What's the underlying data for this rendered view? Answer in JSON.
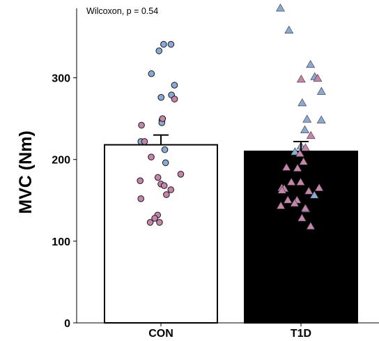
{
  "chart_data": {
    "type": "bar",
    "title": "",
    "xlabel": "",
    "ylabel": "MVC (Nm)",
    "ylim": [
      0,
      385
    ],
    "yticks": [
      0,
      100,
      200,
      300
    ],
    "categories": [
      "CON",
      "T1D"
    ],
    "bars": [
      {
        "category": "CON",
        "value": 218,
        "error_upper": 230,
        "fill": "#ffffff"
      },
      {
        "category": "T1D",
        "value": 210,
        "error_upper": 222,
        "fill": "#000000"
      }
    ],
    "annotation": "Wilcoxon, p = 0.54",
    "grid": false,
    "colors": {
      "blue": "#8aa9d4",
      "pink": "#c585ab"
    },
    "points": {
      "CON": {
        "marker": "circle",
        "blue": [
          341,
          341,
          333,
          305,
          291,
          279,
          276,
          248,
          245,
          222,
          212,
          196
        ],
        "pink": [
          274,
          250,
          242,
          222,
          203,
          182,
          178,
          174,
          170,
          168,
          163,
          157,
          152,
          132,
          128,
          123,
          123
        ]
      },
      "T1D": {
        "marker": "triangle",
        "blue": [
          385,
          358,
          316,
          301,
          283,
          269,
          249,
          248,
          236,
          216,
          209,
          156,
          139
        ],
        "pink": [
          298,
          299,
          229,
          214,
          207,
          197,
          190,
          189,
          172,
          172,
          165,
          165,
          164,
          162,
          161,
          150,
          150,
          146,
          143,
          140,
          128,
          118
        ]
      }
    }
  }
}
